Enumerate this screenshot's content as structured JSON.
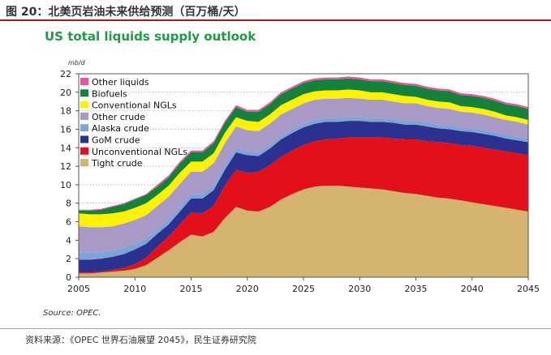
{
  "figure": {
    "title": "图 20：北美页岩油未来供给预测（百万桶/天）",
    "source_note": "Source: OPEC.",
    "footer": "资料来源：《OPEC 世界石油展望 2045》，民生证券研究院",
    "accent_color": "#9c1b1d"
  },
  "chart_data": {
    "type": "area",
    "stacked": true,
    "title": "US total liquids supply outlook",
    "xlabel": "",
    "ylabel": "mb/d",
    "xlim": [
      2005,
      2045
    ],
    "ylim": [
      0,
      22
    ],
    "x_ticks": [
      2005,
      2010,
      2015,
      2020,
      2025,
      2030,
      2035,
      2040,
      2045
    ],
    "y_ticks": [
      0,
      2,
      4,
      6,
      8,
      10,
      12,
      14,
      16,
      18,
      20,
      22
    ],
    "legend_position": "top-left",
    "x": [
      2005,
      2006,
      2007,
      2008,
      2009,
      2010,
      2011,
      2012,
      2013,
      2014,
      2015,
      2016,
      2017,
      2018,
      2019,
      2020,
      2021,
      2022,
      2023,
      2024,
      2025,
      2026,
      2027,
      2028,
      2029,
      2030,
      2031,
      2032,
      2033,
      2034,
      2035,
      2036,
      2037,
      2038,
      2039,
      2040,
      2041,
      2042,
      2043,
      2044,
      2045
    ],
    "series": [
      {
        "name": "Tight crude",
        "color": "#d4b46f",
        "values": [
          0.4,
          0.4,
          0.5,
          0.6,
          0.7,
          0.9,
          1.3,
          2.1,
          2.9,
          3.8,
          4.6,
          4.4,
          4.9,
          6.4,
          7.6,
          7.2,
          7.1,
          7.6,
          8.4,
          9.0,
          9.5,
          9.8,
          9.9,
          9.9,
          9.8,
          9.7,
          9.6,
          9.5,
          9.3,
          9.1,
          9.0,
          8.8,
          8.6,
          8.5,
          8.3,
          8.1,
          7.9,
          7.7,
          7.5,
          7.3,
          7.1
        ]
      },
      {
        "name": "Unconventional NGLs",
        "color": "#e3101c",
        "values": [
          0.1,
          0.1,
          0.1,
          0.2,
          0.3,
          0.5,
          0.8,
          1.2,
          1.5,
          1.9,
          2.4,
          2.5,
          2.8,
          3.5,
          4.0,
          4.1,
          4.3,
          4.5,
          4.6,
          4.7,
          4.8,
          4.9,
          5.0,
          5.1,
          5.3,
          5.4,
          5.5,
          5.6,
          5.7,
          5.8,
          5.9,
          5.9,
          6.0,
          6.0,
          6.0,
          6.1,
          6.1,
          6.1,
          6.1,
          6.1,
          6.1
        ]
      },
      {
        "name": "GoM crude",
        "color": "#2a3190",
        "values": [
          1.4,
          1.4,
          1.4,
          1.4,
          1.5,
          1.6,
          1.5,
          1.4,
          1.3,
          1.4,
          1.5,
          1.6,
          1.7,
          1.7,
          1.9,
          1.9,
          1.7,
          1.8,
          1.9,
          1.9,
          1.9,
          1.9,
          1.9,
          1.8,
          1.8,
          1.8,
          1.7,
          1.7,
          1.7,
          1.6,
          1.6,
          1.6,
          1.5,
          1.5,
          1.5,
          1.5,
          1.5,
          1.5,
          1.4,
          1.4,
          1.4
        ]
      },
      {
        "name": "Alaska crude",
        "color": "#7fa3d4",
        "values": [
          0.8,
          0.8,
          0.7,
          0.7,
          0.7,
          0.6,
          0.6,
          0.5,
          0.5,
          0.5,
          0.5,
          0.5,
          0.5,
          0.5,
          0.5,
          0.4,
          0.4,
          0.4,
          0.4,
          0.4,
          0.4,
          0.4,
          0.4,
          0.4,
          0.4,
          0.4,
          0.4,
          0.4,
          0.4,
          0.4,
          0.4,
          0.4,
          0.4,
          0.4,
          0.4,
          0.4,
          0.4,
          0.4,
          0.4,
          0.4,
          0.4
        ]
      },
      {
        "name": "Other crude",
        "color": "#a899c6",
        "values": [
          2.8,
          2.7,
          2.7,
          2.6,
          2.6,
          2.6,
          2.5,
          2.5,
          2.5,
          2.5,
          2.4,
          2.4,
          2.4,
          2.4,
          2.3,
          2.3,
          2.3,
          2.3,
          2.3,
          2.2,
          2.2,
          2.2,
          2.1,
          2.1,
          2.1,
          2.0,
          2.0,
          2.0,
          1.9,
          1.9,
          1.9,
          1.8,
          1.8,
          1.8,
          1.7,
          1.7,
          1.7,
          1.6,
          1.6,
          1.6,
          1.5
        ]
      },
      {
        "name": "Conventional NGLs",
        "color": "#fff200",
        "values": [
          1.4,
          1.4,
          1.4,
          1.4,
          1.3,
          1.3,
          1.3,
          1.2,
          1.2,
          1.2,
          1.1,
          1.1,
          1.1,
          1.1,
          1.0,
          1.0,
          1.0,
          1.0,
          1.0,
          1.0,
          1.0,
          0.9,
          0.9,
          0.9,
          0.9,
          0.9,
          0.8,
          0.8,
          0.8,
          0.8,
          0.7,
          0.7,
          0.7,
          0.7,
          0.6,
          0.6,
          0.6,
          0.6,
          0.5,
          0.5,
          0.5
        ]
      },
      {
        "name": "Biofuels",
        "color": "#13823d",
        "values": [
          0.3,
          0.4,
          0.5,
          0.7,
          0.8,
          0.9,
          0.9,
          0.9,
          0.9,
          1.0,
          1.0,
          1.0,
          1.1,
          1.1,
          1.1,
          1.0,
          1.1,
          1.1,
          1.2,
          1.2,
          1.2,
          1.2,
          1.2,
          1.2,
          1.2,
          1.2,
          1.2,
          1.2,
          1.2,
          1.2,
          1.2,
          1.2,
          1.2,
          1.2,
          1.2,
          1.2,
          1.2,
          1.2,
          1.2,
          1.2,
          1.2
        ]
      },
      {
        "name": "Other liquids",
        "color": "#e9559a",
        "values": [
          0.1,
          0.1,
          0.1,
          0.1,
          0.1,
          0.1,
          0.1,
          0.2,
          0.2,
          0.2,
          0.2,
          0.2,
          0.2,
          0.2,
          0.2,
          0.2,
          0.2,
          0.2,
          0.2,
          0.2,
          0.2,
          0.2,
          0.2,
          0.2,
          0.2,
          0.2,
          0.2,
          0.2,
          0.2,
          0.2,
          0.2,
          0.2,
          0.2,
          0.2,
          0.2,
          0.2,
          0.2,
          0.2,
          0.2,
          0.2,
          0.2
        ]
      }
    ]
  }
}
